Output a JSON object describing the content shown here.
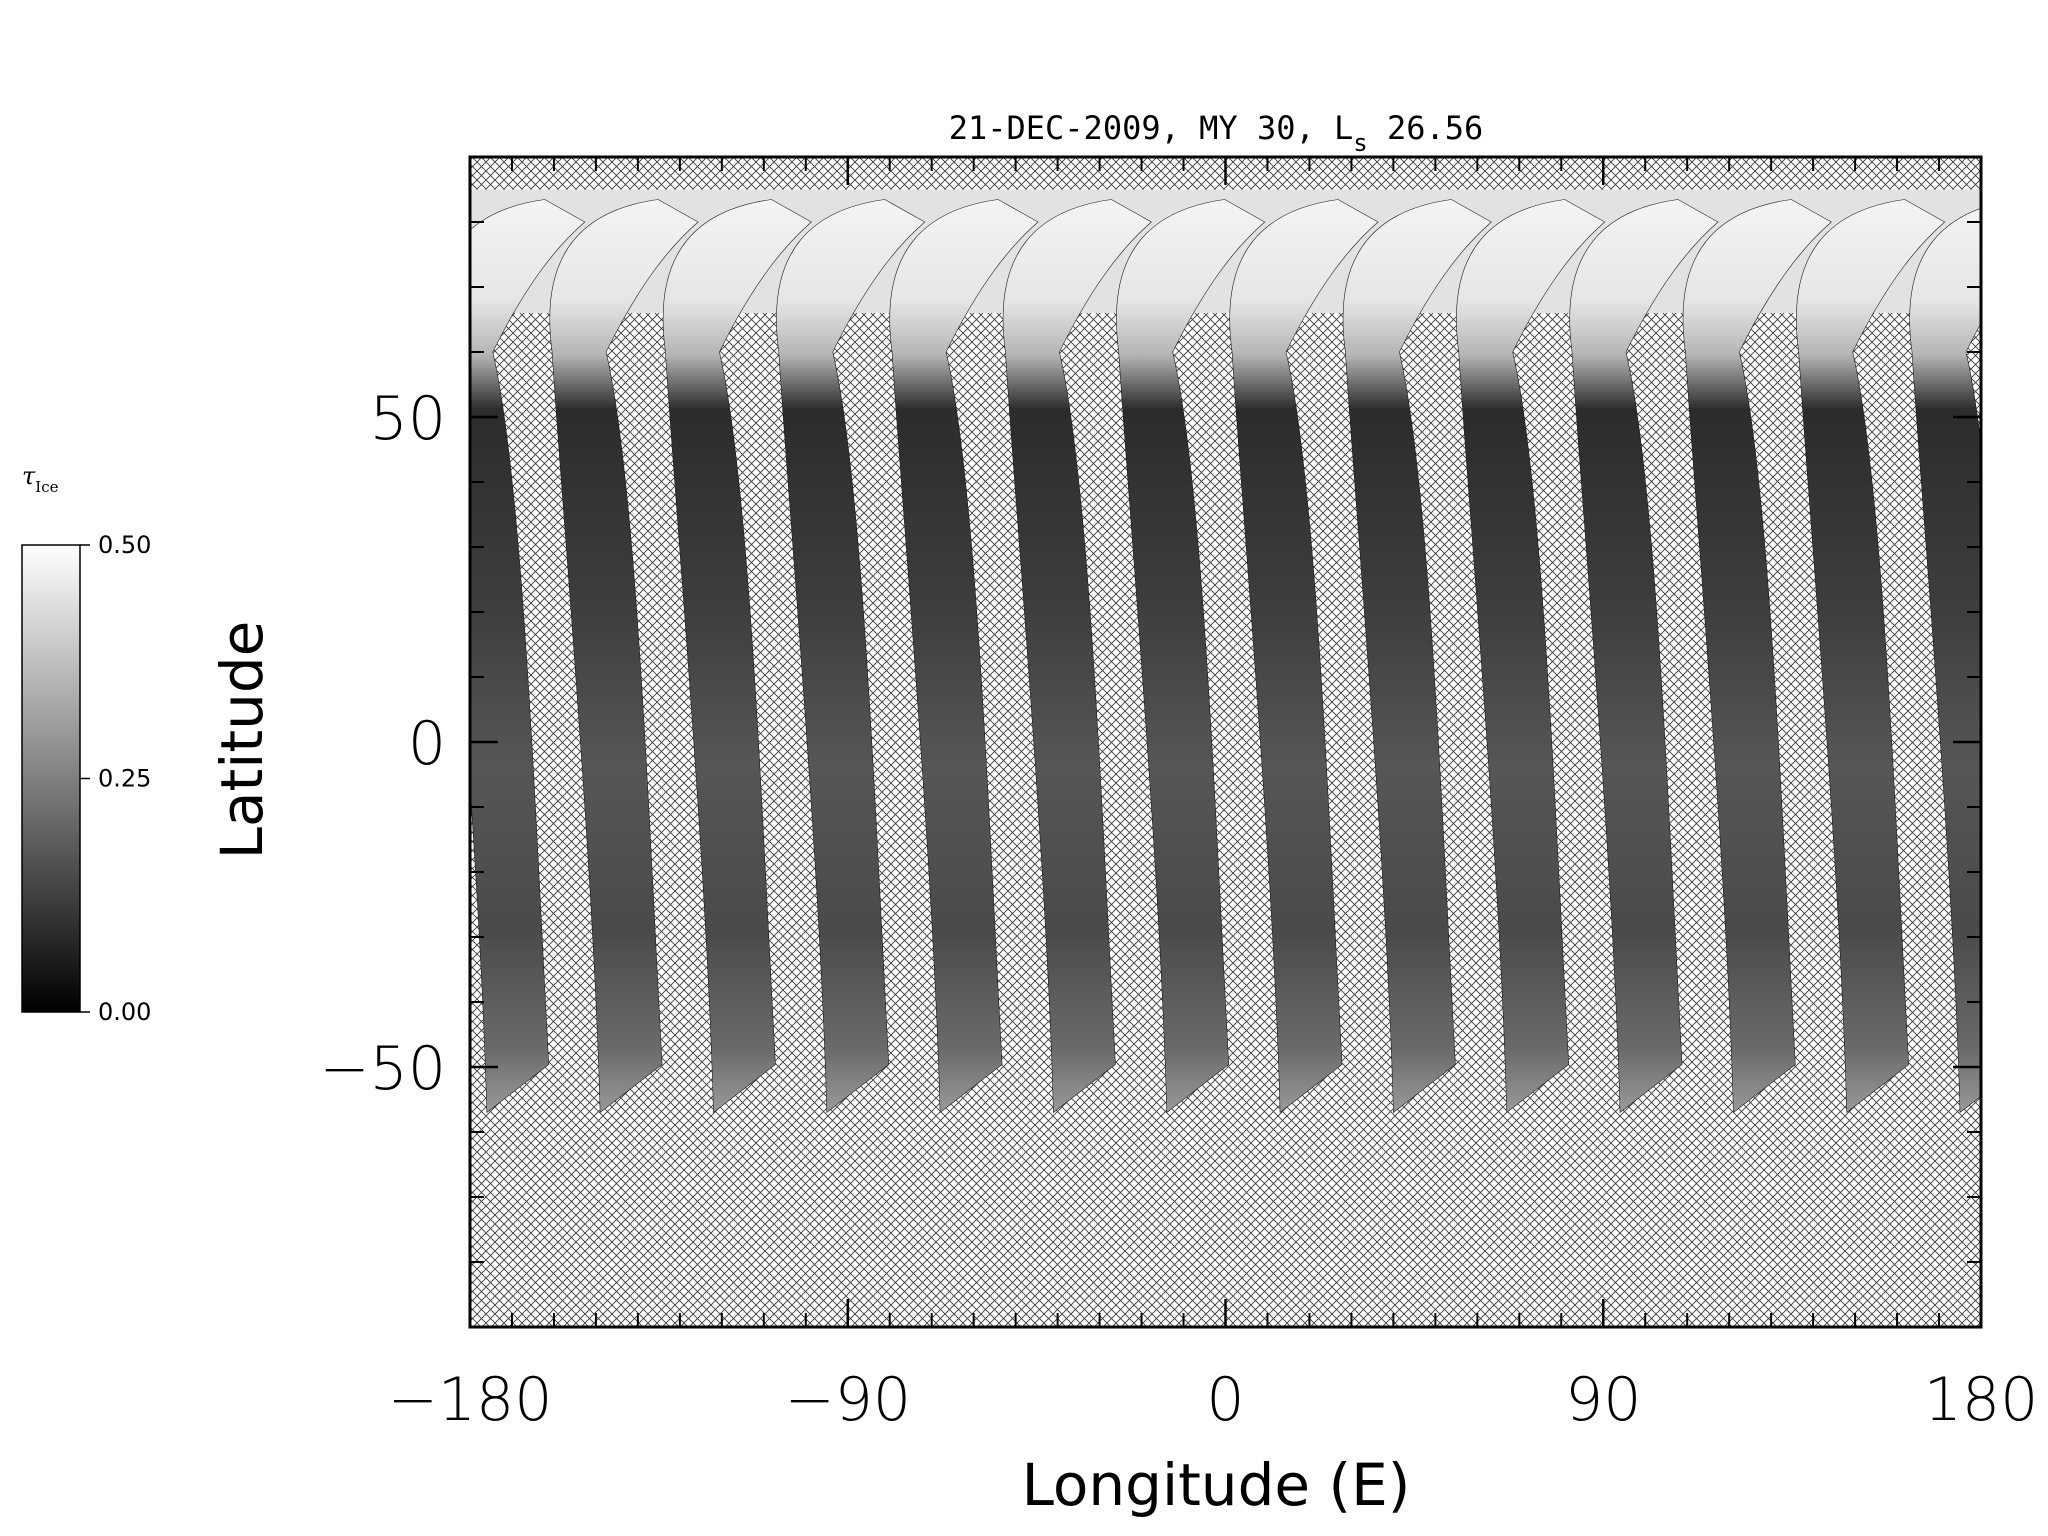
{
  "title": {
    "prefix": "21-DEC-2009, MY 30,  L",
    "subscript": "s",
    "suffix": " 26.56"
  },
  "axes": {
    "xlabel": "Longitude (E)",
    "ylabel": "Latitude",
    "x_range": [
      -180,
      180
    ],
    "y_range": [
      -90,
      90
    ],
    "x_ticks": [
      {
        "value": -180,
        "label": "−180"
      },
      {
        "value": -90,
        "label": "−90"
      },
      {
        "value": 0,
        "label": "0"
      },
      {
        "value": 90,
        "label": "90"
      },
      {
        "value": 180,
        "label": "180"
      }
    ],
    "y_ticks": [
      {
        "value": 50,
        "label": "50"
      },
      {
        "value": 0,
        "label": "0"
      },
      {
        "value": -50,
        "label": "−50"
      }
    ]
  },
  "colorbar": {
    "symbol": "τ",
    "subscript": "Ice",
    "range": [
      0.0,
      0.5
    ],
    "ticks": [
      {
        "value": 0.5,
        "label": "0.50"
      },
      {
        "value": 0.25,
        "label": "0.25"
      },
      {
        "value": 0.0,
        "label": "0.00"
      }
    ],
    "colormap": "grayscale"
  },
  "map": {
    "no_data_fill": "crosshatch",
    "swath_count": 14,
    "swath_bottom_longitudes": [
      -176,
      -149,
      -122,
      -95,
      -68,
      -41,
      -14,
      13,
      40,
      67,
      94,
      121,
      148,
      175
    ],
    "swath_min_latitude": -57,
    "swath_max_latitude": 85
  }
}
